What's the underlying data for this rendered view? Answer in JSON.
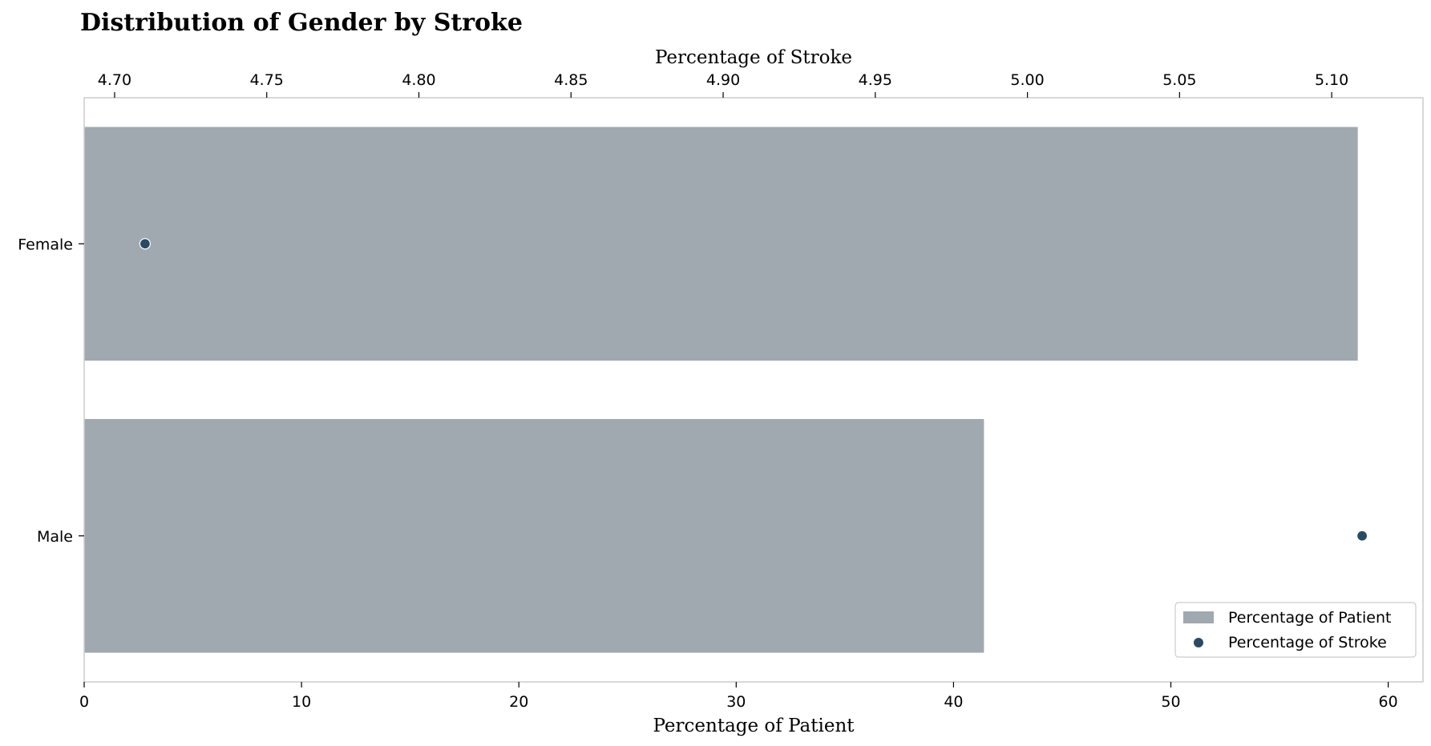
{
  "chart_data": {
    "type": "bar",
    "orientation": "horizontal",
    "title": "Distribution of Gender by Stroke",
    "categories": [
      "Female",
      "Male"
    ],
    "series": [
      {
        "name": "Percentage of Patient",
        "kind": "bar",
        "axis": "bottom",
        "values": [
          58.6,
          41.4
        ],
        "color": "#a0a8b0"
      },
      {
        "name": "Percentage of Stroke",
        "kind": "scatter",
        "axis": "top",
        "values": [
          4.71,
          5.11
        ],
        "color": "#2a4a64"
      }
    ],
    "x_bottom": {
      "label": "Percentage of Patient",
      "range": [
        0,
        61.6
      ],
      "ticks": [
        0,
        10,
        20,
        30,
        40,
        50,
        60
      ]
    },
    "x_top": {
      "label": "Percentage of Stroke",
      "range": [
        4.69,
        5.13
      ],
      "ticks": [
        "4.70",
        "4.75",
        "4.80",
        "4.85",
        "4.90",
        "4.95",
        "5.00",
        "5.05",
        "5.10"
      ]
    },
    "grid": false,
    "legend": "bottom-right",
    "legend_entries": [
      "Percentage of Patient",
      "Percentage of Stroke"
    ]
  }
}
